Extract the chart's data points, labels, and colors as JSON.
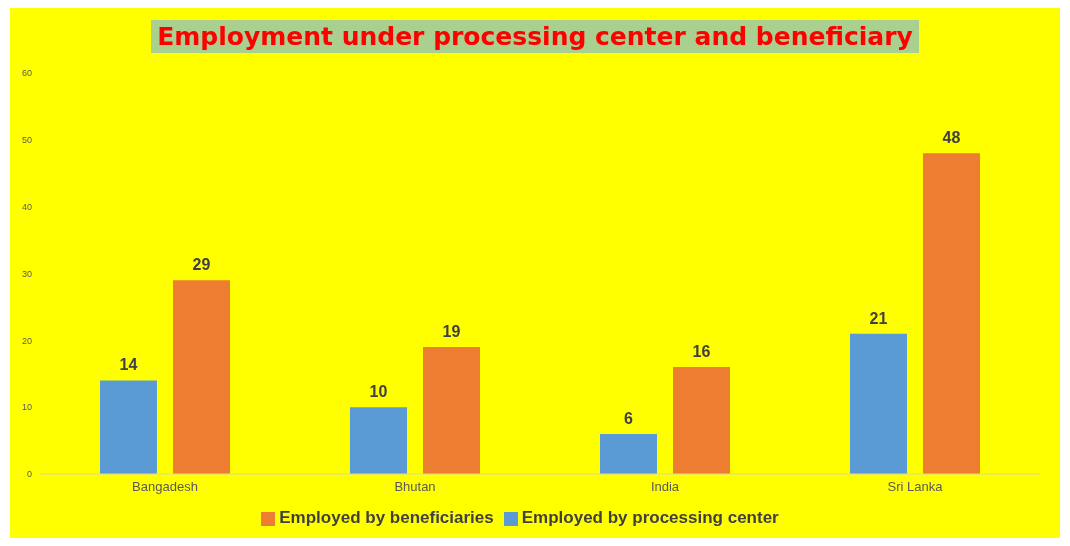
{
  "chart_data": {
    "type": "bar",
    "title": "Employment under processing center and beneficiary",
    "categories": [
      "Bangadesh",
      "Bhutan",
      "India",
      "Sri Lanka"
    ],
    "series": [
      {
        "name": "Employed by processing center",
        "color": "#5b9bd5",
        "values": [
          14,
          10,
          6,
          21
        ]
      },
      {
        "name": "Employed by beneficiaries",
        "color": "#ed7d31",
        "values": [
          29,
          19,
          16,
          48
        ]
      }
    ],
    "ylim": [
      0,
      60
    ],
    "yticks": [
      0,
      10,
      20,
      30,
      40,
      50,
      60
    ],
    "grid": false,
    "legend": "bottom",
    "data_labels": true
  }
}
